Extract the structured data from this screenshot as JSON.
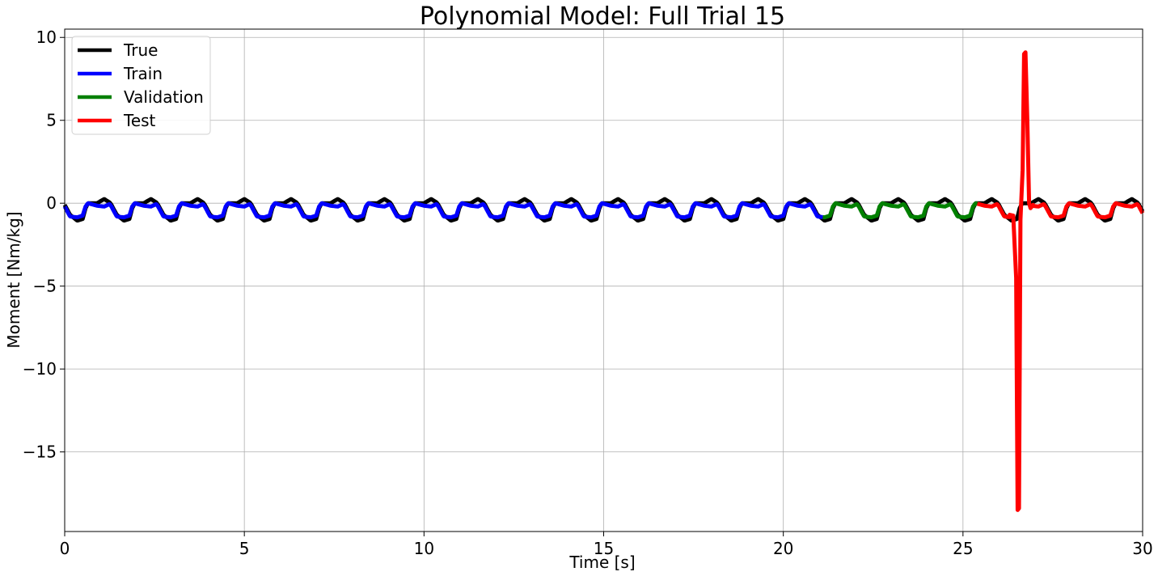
{
  "chart_data": {
    "type": "line",
    "title": "Polynomial Model: Full Trial 15",
    "xlabel": "Time [s]",
    "ylabel": "Moment [Nm/kg]",
    "xlim": [
      0,
      30
    ],
    "ylim": [
      -19.8,
      10.5
    ],
    "xticks": [
      0,
      5,
      10,
      15,
      20,
      25,
      30
    ],
    "yticks": [
      10,
      5,
      0,
      -5,
      -10,
      -15
    ],
    "xtick_labels": [
      "0",
      "5",
      "10",
      "15",
      "20",
      "25",
      "30"
    ],
    "ytick_labels": [
      "10",
      "5",
      "0",
      "−5",
      "−10",
      "−15"
    ],
    "grid": true,
    "legend_position": "top-left",
    "gait_period_s": 1.3,
    "series": [
      {
        "name": "True",
        "color": "#000000",
        "x_range": [
          0,
          30
        ],
        "points": [
          [
            0.0,
            -0.1
          ],
          [
            0.15,
            -0.7
          ],
          [
            0.35,
            -1.05
          ],
          [
            0.5,
            -0.95
          ],
          [
            0.58,
            -0.3
          ],
          [
            0.65,
            0.0
          ],
          [
            0.9,
            0.0
          ],
          [
            1.1,
            0.25
          ],
          [
            1.25,
            0.05
          ],
          [
            1.3,
            -0.1
          ]
        ]
      },
      {
        "name": "Train",
        "color": "#0000ff",
        "x_range": [
          0,
          21.1
        ],
        "points": [
          [
            0.0,
            -0.2
          ],
          [
            0.15,
            -0.8
          ],
          [
            0.35,
            -0.85
          ],
          [
            0.5,
            -0.75
          ],
          [
            0.58,
            -0.2
          ],
          [
            0.65,
            0.0
          ],
          [
            0.9,
            -0.15
          ],
          [
            1.1,
            -0.2
          ],
          [
            1.25,
            -0.05
          ],
          [
            1.3,
            -0.2
          ]
        ]
      },
      {
        "name": "Validation",
        "color": "#008000",
        "x_range": [
          21.1,
          25.4
        ],
        "points": [
          [
            0.0,
            -0.2
          ],
          [
            0.15,
            -0.8
          ],
          [
            0.35,
            -0.85
          ],
          [
            0.5,
            -0.75
          ],
          [
            0.58,
            -0.2
          ],
          [
            0.65,
            0.0
          ],
          [
            0.9,
            -0.15
          ],
          [
            1.1,
            -0.2
          ],
          [
            1.25,
            -0.05
          ],
          [
            1.3,
            -0.2
          ]
        ]
      },
      {
        "name": "Test",
        "color": "#ff0000",
        "x_range": [
          25.4,
          30
        ],
        "points": [
          [
            0.0,
            -0.2
          ],
          [
            0.15,
            -0.8
          ],
          [
            0.35,
            -0.85
          ],
          [
            0.5,
            -0.75
          ],
          [
            0.58,
            -0.2
          ],
          [
            0.65,
            0.0
          ],
          [
            0.9,
            -0.15
          ],
          [
            1.1,
            -0.2
          ],
          [
            1.25,
            -0.05
          ],
          [
            1.3,
            -0.2
          ]
        ],
        "spike": [
          [
            26.3,
            -0.7
          ],
          [
            26.4,
            -0.75
          ],
          [
            26.48,
            -4.5
          ],
          [
            26.52,
            -18.5
          ],
          [
            26.56,
            -18.4
          ],
          [
            26.6,
            -1.0
          ],
          [
            26.66,
            2.0
          ],
          [
            26.7,
            9.0
          ],
          [
            26.74,
            9.1
          ],
          [
            26.79,
            5.0
          ],
          [
            26.84,
            0.0
          ],
          [
            26.88,
            -0.3
          ],
          [
            26.95,
            -0.1
          ]
        ]
      }
    ]
  }
}
